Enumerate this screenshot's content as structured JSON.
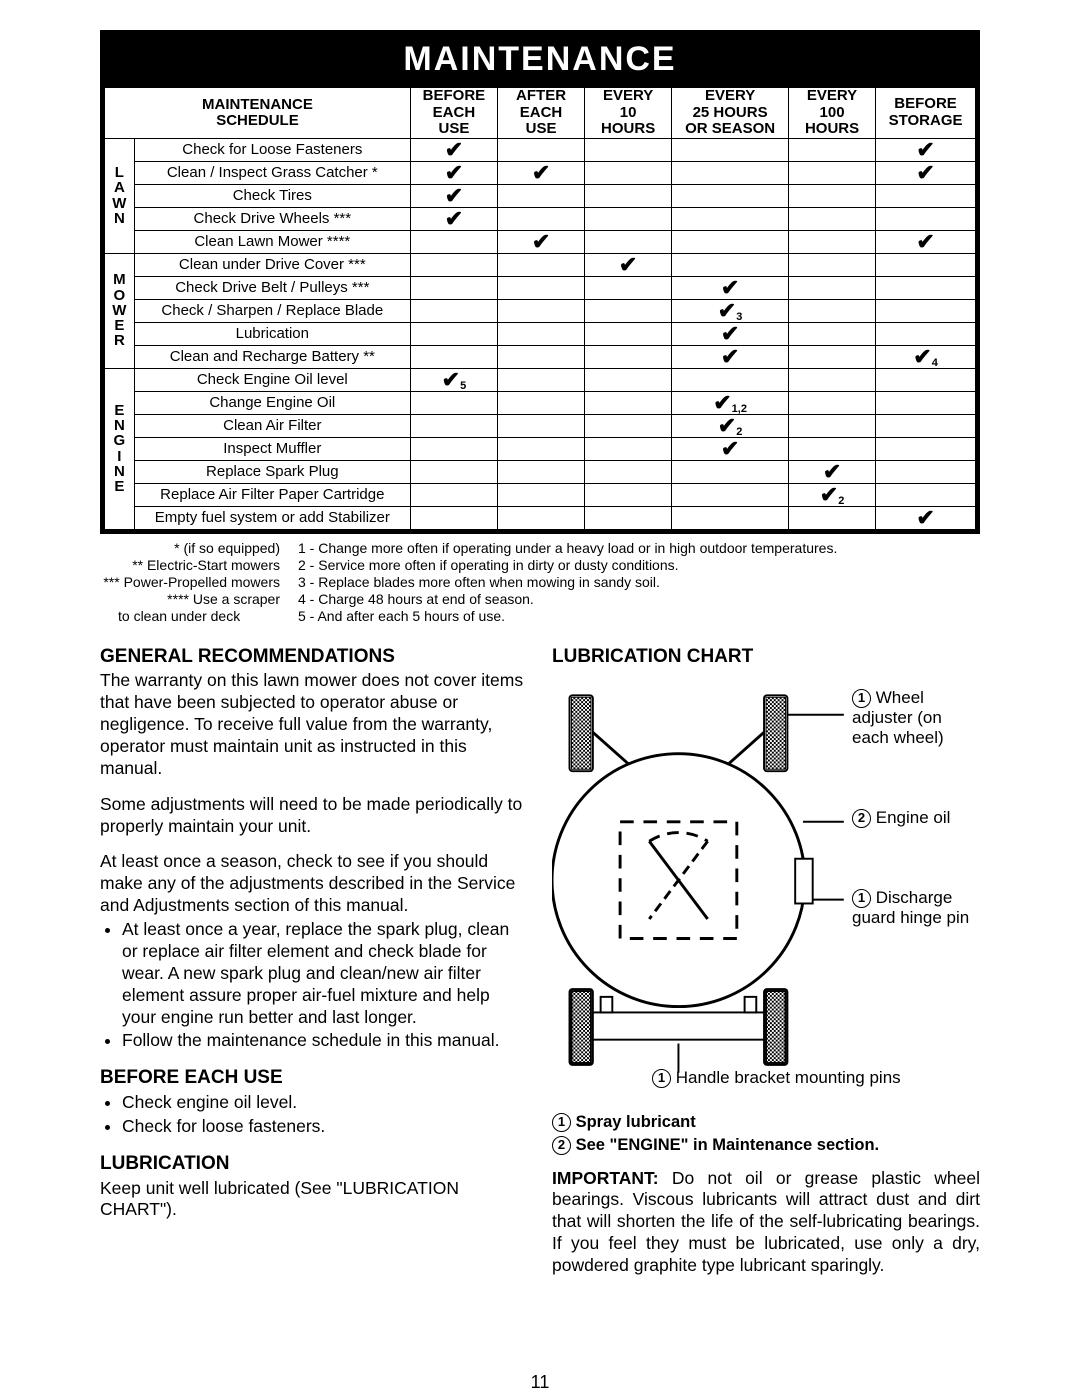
{
  "header": {
    "title": "MAINTENANCE"
  },
  "schedule": {
    "row_title_lines": [
      "MAINTENANCE",
      "SCHEDULE"
    ],
    "col_headers": [
      "BEFORE\nEACH\nUSE",
      "AFTER\nEACH\nUSE",
      "EVERY\n10\nHOURS",
      "EVERY\n25 HOURS\nOR SEASON",
      "EVERY\n100\nHOURS",
      "BEFORE\nSTORAGE"
    ],
    "sections": [
      {
        "cat_label": "L\nA\nW\nN",
        "tasks": [
          {
            "name": "Check for Loose Fasteners",
            "marks": [
              "",
              "",
              "",
              "",
              "",
              ""
            ],
            "subs": [
              "",
              "",
              "",
              "",
              "",
              ""
            ],
            "check": [
              1,
              0,
              0,
              0,
              0,
              1
            ]
          },
          {
            "name": "Clean / Inspect Grass Catcher *",
            "check": [
              1,
              1,
              0,
              0,
              0,
              1
            ],
            "subs": [
              "",
              "",
              "",
              "",
              "",
              ""
            ]
          },
          {
            "name": "Check Tires",
            "check": [
              1,
              0,
              0,
              0,
              0,
              0
            ],
            "subs": [
              "",
              "",
              "",
              "",
              "",
              ""
            ]
          },
          {
            "name": "Check Drive Wheels ***",
            "check": [
              1,
              0,
              0,
              0,
              0,
              0
            ],
            "subs": [
              "",
              "",
              "",
              "",
              "",
              ""
            ]
          },
          {
            "name": "Clean Lawn Mower ****",
            "check": [
              0,
              1,
              0,
              0,
              0,
              1
            ],
            "subs": [
              "",
              "",
              "",
              "",
              "",
              ""
            ]
          }
        ]
      },
      {
        "cat_label": "M\nO\nW\nE\nR",
        "tasks": [
          {
            "name": "Clean under Drive Cover ***",
            "check": [
              0,
              0,
              1,
              0,
              0,
              0
            ],
            "subs": [
              "",
              "",
              "",
              "",
              "",
              ""
            ]
          },
          {
            "name": "Check Drive Belt / Pulleys ***",
            "check": [
              0,
              0,
              0,
              1,
              0,
              0
            ],
            "subs": [
              "",
              "",
              "",
              "",
              "",
              ""
            ]
          },
          {
            "name": "Check / Sharpen / Replace Blade",
            "check": [
              0,
              0,
              0,
              1,
              0,
              0
            ],
            "subs": [
              "",
              "",
              "",
              "3",
              "",
              ""
            ]
          },
          {
            "name": "Lubrication",
            "check": [
              0,
              0,
              0,
              1,
              0,
              0
            ],
            "subs": [
              "",
              "",
              "",
              "",
              "",
              ""
            ]
          },
          {
            "name": "Clean and Recharge Battery **",
            "check": [
              0,
              0,
              0,
              1,
              0,
              1
            ],
            "subs": [
              "",
              "",
              "",
              "",
              "",
              "4"
            ]
          }
        ]
      },
      {
        "cat_label": "E\nN\nG\nI\nN\nE",
        "tasks": [
          {
            "name": "Check Engine Oil level",
            "check": [
              1,
              0,
              0,
              0,
              0,
              0
            ],
            "subs": [
              "5",
              "",
              "",
              "",
              "",
              ""
            ]
          },
          {
            "name": "Change Engine Oil",
            "check": [
              0,
              0,
              0,
              1,
              0,
              0
            ],
            "subs": [
              "",
              "",
              "",
              "1,2",
              "",
              ""
            ]
          },
          {
            "name": "Clean Air Filter",
            "check": [
              0,
              0,
              0,
              1,
              0,
              0
            ],
            "subs": [
              "",
              "",
              "",
              "2",
              "",
              ""
            ]
          },
          {
            "name": "Inspect Muffler",
            "check": [
              0,
              0,
              0,
              1,
              0,
              0
            ],
            "subs": [
              "",
              "",
              "",
              "",
              "",
              ""
            ]
          },
          {
            "name": "Replace Spark Plug",
            "check": [
              0,
              0,
              0,
              0,
              1,
              0
            ],
            "subs": [
              "",
              "",
              "",
              "",
              "",
              ""
            ]
          },
          {
            "name": "Replace Air Filter Paper Cartridge",
            "check": [
              0,
              0,
              0,
              0,
              1,
              0
            ],
            "subs": [
              "",
              "",
              "",
              "",
              "2",
              ""
            ]
          },
          {
            "name": "Empty fuel system or add Stabilizer",
            "check": [
              0,
              0,
              0,
              0,
              0,
              1
            ],
            "subs": [
              "",
              "",
              "",
              "",
              "",
              ""
            ]
          }
        ]
      }
    ]
  },
  "footnotes": {
    "left": [
      "* (if so equipped)",
      "** Electric-Start mowers",
      "*** Power-Propelled mowers",
      "**** Use a scraper",
      "to clean under deck"
    ],
    "right": [
      "1 - Change more often if operating under a heavy load or in high outdoor temperatures.",
      "2 - Service more often if operating in dirty or dusty conditions.",
      "3 - Replace blades more often when mowing in sandy soil.",
      "4 - Charge 48 hours at end of season.",
      "5 - And after each 5 hours of use."
    ]
  },
  "left_column": {
    "title": "GENERAL RECOMMENDATIONS",
    "p1": "The warranty on this lawn mower does not cover items that have been subjected to operator abuse or negligence.  To receive full value from the warranty, operator must maintain unit as instructed in this manual.",
    "p2": "Some adjustments will need to be made periodically to properly maintain your unit.",
    "p3": "At least once a season, check to see if you should make any of the adjustments described in the Service and Adjustments section of this manual.",
    "bullets1": [
      "At least once a year, replace the spark plug, clean or replace air filter element and check blade for wear.  A new spark plug and clean/new air filter element assure proper air-fuel mixture and help your engine run better and last longer.",
      "Follow the maintenance schedule in this manual."
    ],
    "sub1_title": "BEFORE EACH USE",
    "sub1_bullets": [
      "Check engine oil level.",
      "Check for loose fasteners."
    ],
    "sub2_title": "LUBRICATION",
    "sub2_text": "Keep unit well lubricated (See \"LUBRICATION CHART\")."
  },
  "right_column": {
    "title": "LUBRICATION CHART",
    "labels": {
      "wheel_adj": "Wheel adjuster (on each wheel)",
      "engine_oil": "Engine oil",
      "discharge": "Discharge guard hinge pin",
      "handle": "Handle bracket mounting pins"
    },
    "legendL1": " Spray lubricant",
    "legendL2": " See \"ENGINE\" in Maintenance section.",
    "important_label": "IMPORTANT:",
    "important_text": "  Do not oil or grease plastic wheel bearings.   Viscous lubricants will attract dust and dirt that will shorten the life of the self-lubricating bearings.  If you feel they must be lubricated, use only a dry, powdered graphite type lubricant sparingly."
  },
  "page_number": "11"
}
